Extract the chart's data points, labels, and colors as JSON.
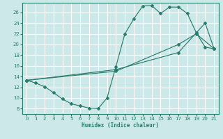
{
  "bg_color": "#cce8e8",
  "grid_color": "#ffffff",
  "line_color": "#2a7d6b",
  "xlabel": "Humidex (Indice chaleur)",
  "xlim": [
    -0.5,
    21.5
  ],
  "ylim": [
    7.0,
    27.8
  ],
  "xticks": [
    0,
    1,
    2,
    3,
    4,
    5,
    6,
    7,
    8,
    9,
    10,
    11,
    12,
    13,
    14,
    15,
    16,
    17,
    18,
    19,
    20,
    21
  ],
  "yticks": [
    8,
    10,
    12,
    14,
    16,
    18,
    20,
    22,
    24,
    26
  ],
  "curve1_x": [
    0,
    1,
    2,
    3,
    4,
    5,
    6,
    7,
    8,
    9,
    10,
    11,
    12,
    13,
    14,
    15,
    16,
    17,
    18,
    19,
    20,
    21
  ],
  "curve1_y": [
    13.3,
    12.8,
    12.1,
    11.0,
    9.8,
    8.9,
    8.5,
    8.1,
    8.0,
    10.0,
    15.9,
    22.0,
    24.8,
    27.2,
    27.3,
    25.8,
    27.0,
    27.0,
    25.8,
    22.2,
    19.5,
    19.2
  ],
  "curve2_x": [
    0,
    21
  ],
  "curve2_y": [
    13.3,
    19.2
  ],
  "line1_x": [
    0,
    10,
    17,
    20,
    21
  ],
  "line1_y": [
    13.3,
    15.3,
    18.5,
    24.0,
    19.2
  ],
  "line2_x": [
    0,
    10,
    17,
    19,
    21
  ],
  "line2_y": [
    13.3,
    15.0,
    20.0,
    22.0,
    19.2
  ]
}
